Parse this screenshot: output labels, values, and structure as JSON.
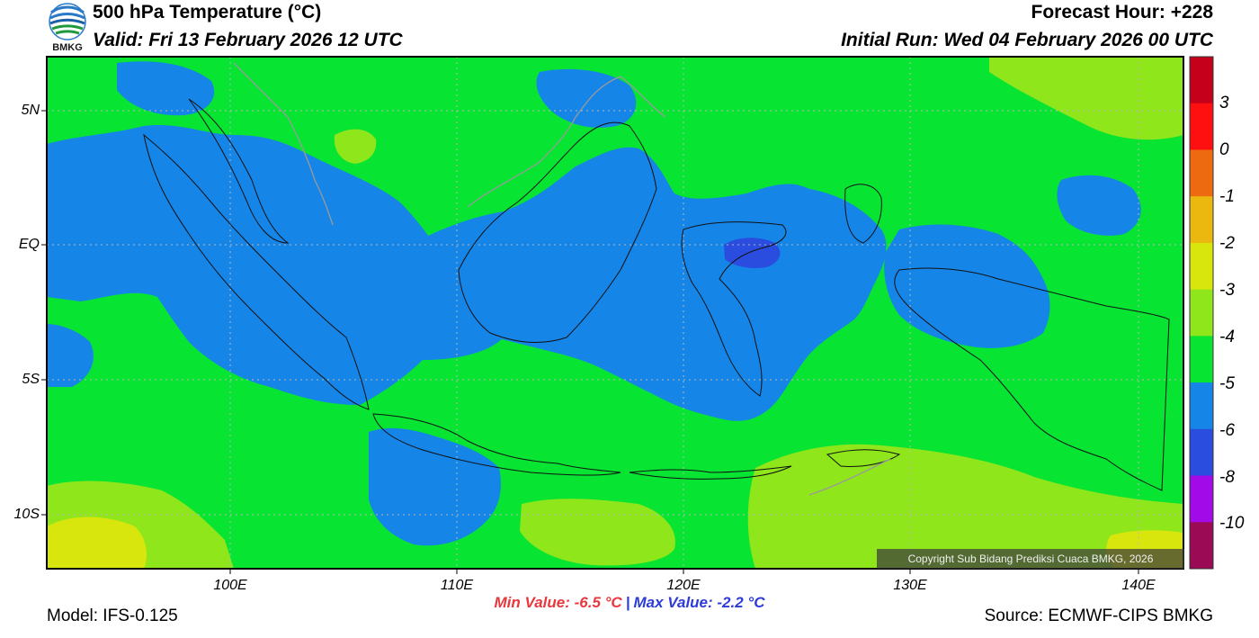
{
  "header": {
    "title": "500 hPa Temperature (°C)",
    "valid": "Valid: Fri 13 February 2026 12 UTC",
    "forecast_hour": "Forecast Hour: +228",
    "initial_run": "Initial Run: Wed 04 February 2026 00 UTC",
    "logo_text": "BMKG"
  },
  "map": {
    "lat_labels": [
      "5N",
      "EQ",
      "5S",
      "10S"
    ],
    "lon_labels": [
      "100E",
      "110E",
      "120E",
      "130E",
      "140E"
    ],
    "copyright": "Copyright Sub Bidang Prediksi Cuaca BMKG, 2026"
  },
  "colorbar": {
    "labels": [
      "3",
      "0",
      "-1",
      "-2",
      "-3",
      "-4",
      "-5",
      "-6",
      "-8",
      "-10"
    ],
    "colors": [
      "#c4001a",
      "#ff1010",
      "#ee6a10",
      "#eab80e",
      "#d8e60e",
      "#8fe61a",
      "#08e432",
      "#1685e8",
      "#2a4de0",
      "#a20ae8",
      "#9a0a55"
    ]
  },
  "footer": {
    "model": "Model: IFS-0.125",
    "min_value": "Min Value: -6.5 °C",
    "separator": "|",
    "max_value": "Max Value: -2.2 °C",
    "source": "Source: ECMWF-CIPS BMKG"
  }
}
